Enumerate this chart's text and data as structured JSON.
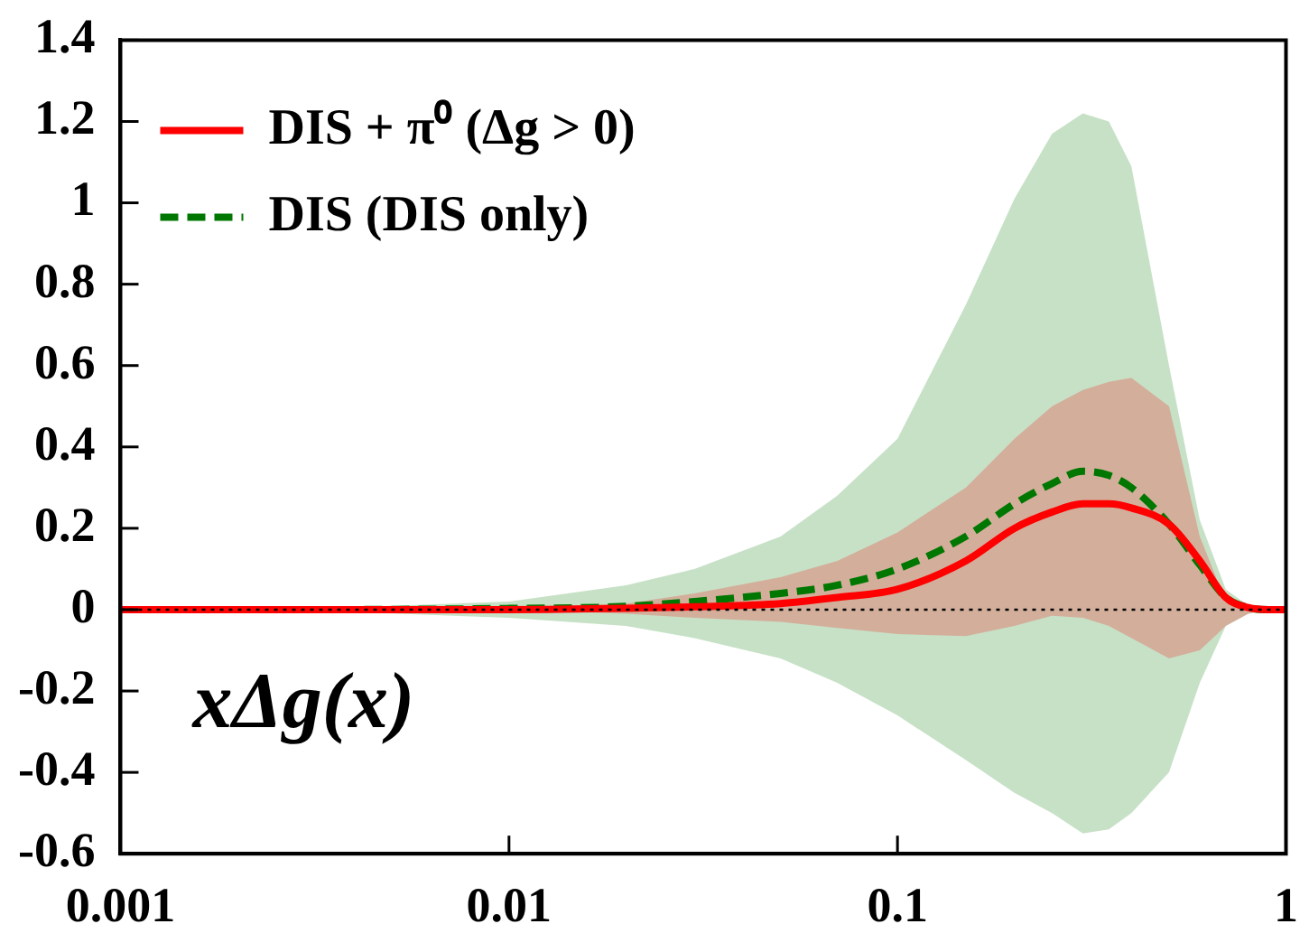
{
  "chart_data": {
    "type": "line",
    "xlim": [
      0.001,
      1
    ],
    "xticks": [
      0.001,
      0.01,
      0.1,
      1
    ],
    "ylim": [
      -0.6,
      1.4
    ],
    "yticks": [
      -0.6,
      -0.4,
      -0.2,
      0,
      0.2,
      0.4,
      0.6,
      0.8,
      1,
      1.2,
      1.4
    ],
    "log": "x",
    "grid": false,
    "legend": "top left",
    "marker": "none",
    "x": [
      0.001,
      0.003,
      0.01,
      0.02,
      0.03,
      0.05,
      0.07,
      0.1,
      0.15,
      0.2,
      0.25,
      0.3,
      0.35,
      0.4,
      0.5,
      0.6,
      0.7,
      0.8,
      0.9,
      1
    ],
    "series": [
      {
        "name": "DIS + π⁰ (Δg > 0)",
        "color": "#ff0000",
        "line_style": "solid",
        "values": [
          0,
          0,
          0,
          0.003,
          0.007,
          0.015,
          0.03,
          0.05,
          0.12,
          0.2,
          0.24,
          0.26,
          0.26,
          0.25,
          0.21,
          0.12,
          0.03,
          0.005,
          0,
          0
        ],
        "lower": [
          0,
          0,
          0,
          -0.01,
          -0.02,
          -0.03,
          -0.045,
          -0.06,
          -0.065,
          -0.04,
          -0.015,
          -0.02,
          -0.04,
          -0.07,
          -0.12,
          -0.1,
          -0.04,
          -0.01,
          0,
          0
        ],
        "upper": [
          0,
          0,
          0.005,
          0.015,
          0.04,
          0.08,
          0.12,
          0.19,
          0.3,
          0.42,
          0.5,
          0.54,
          0.56,
          0.57,
          0.5,
          0.18,
          0.02,
          0.005,
          0,
          0
        ]
      },
      {
        "name": "DIS (DIS only)",
        "color": "#007700",
        "line_style": "dashed",
        "values": [
          0,
          0,
          0.003,
          0.008,
          0.02,
          0.04,
          0.06,
          0.1,
          0.18,
          0.26,
          0.31,
          0.34,
          0.33,
          0.3,
          0.21,
          0.11,
          0.03,
          0.005,
          0,
          0
        ],
        "lower": [
          0,
          -0.002,
          -0.02,
          -0.04,
          -0.07,
          -0.12,
          -0.18,
          -0.26,
          -0.37,
          -0.45,
          -0.5,
          -0.55,
          -0.54,
          -0.5,
          -0.4,
          -0.18,
          -0.04,
          -0.01,
          0,
          0
        ],
        "upper": [
          0,
          0.002,
          0.02,
          0.06,
          0.1,
          0.18,
          0.28,
          0.42,
          0.75,
          1.01,
          1.17,
          1.22,
          1.2,
          1.09,
          0.6,
          0.22,
          0.05,
          0.01,
          0,
          0
        ]
      }
    ],
    "ref_lines": [
      {
        "axis": "y",
        "value": 0,
        "color": "#000000",
        "line_style": "dotted"
      }
    ],
    "annotations": [
      "xΔg(x)"
    ]
  }
}
